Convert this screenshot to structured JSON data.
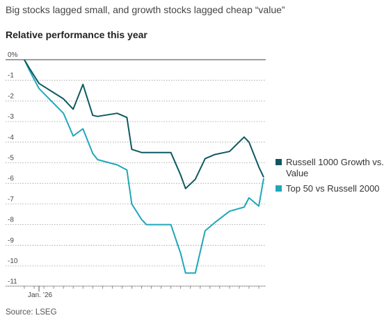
{
  "header": {
    "title": "Big stocks lagged small, and growth stocks lagged cheap “value”",
    "subtitle": "Relative performance this year"
  },
  "footer": {
    "source": "Source: LSEG"
  },
  "chart_data": {
    "type": "line",
    "title": "Big stocks lagged small, and growth stocks lagged cheap “value”",
    "subtitle": "Relative performance this year",
    "xlabel": "",
    "ylabel": "",
    "x_tick_labels": [
      "Jan. ’26"
    ],
    "y_tick_labels": [
      "0%",
      "-1",
      "-2",
      "-3",
      "-4",
      "-5",
      "-6",
      "-7",
      "-8",
      "-9",
      "-10",
      "-11"
    ],
    "y_ticks": [
      0,
      -1,
      -2,
      -3,
      -4,
      -5,
      -6,
      -7,
      -8,
      -9,
      -10,
      -11
    ],
    "ylim": [
      -11,
      0
    ],
    "legend_position": "right",
    "x_index": [
      0,
      1,
      3,
      8,
      10,
      12,
      14,
      15,
      19,
      21,
      22,
      24,
      25,
      27,
      30,
      32,
      33,
      35,
      37,
      38,
      39,
      42,
      45,
      46,
      48,
      49
    ],
    "series": [
      {
        "name": "Russell 1000 Growth vs. Value",
        "color": "#0e5961",
        "values": [
          0,
          -0.4,
          -1.15,
          -1.9,
          -2.4,
          -1.2,
          -2.7,
          -2.75,
          -2.6,
          -2.8,
          -4.35,
          -4.5,
          -4.5,
          -4.5,
          -4.5,
          -5.6,
          -6.25,
          -5.8,
          -4.8,
          -4.7,
          -4.6,
          -4.45,
          -3.75,
          -4.0,
          -5.2,
          -5.7
        ]
      },
      {
        "name": "Top 50 vs Russell 2000",
        "color": "#1fa7b8",
        "values": [
          0,
          -0.5,
          -1.4,
          -2.6,
          -3.7,
          -3.35,
          -4.55,
          -4.85,
          -5.1,
          -5.35,
          -7.0,
          -7.75,
          -8.0,
          -8.0,
          -8.0,
          -9.4,
          -10.35,
          -10.35,
          -8.3,
          -8.1,
          -7.9,
          -7.35,
          -7.15,
          -6.7,
          -7.1,
          -5.75
        ]
      }
    ],
    "grid": true
  }
}
